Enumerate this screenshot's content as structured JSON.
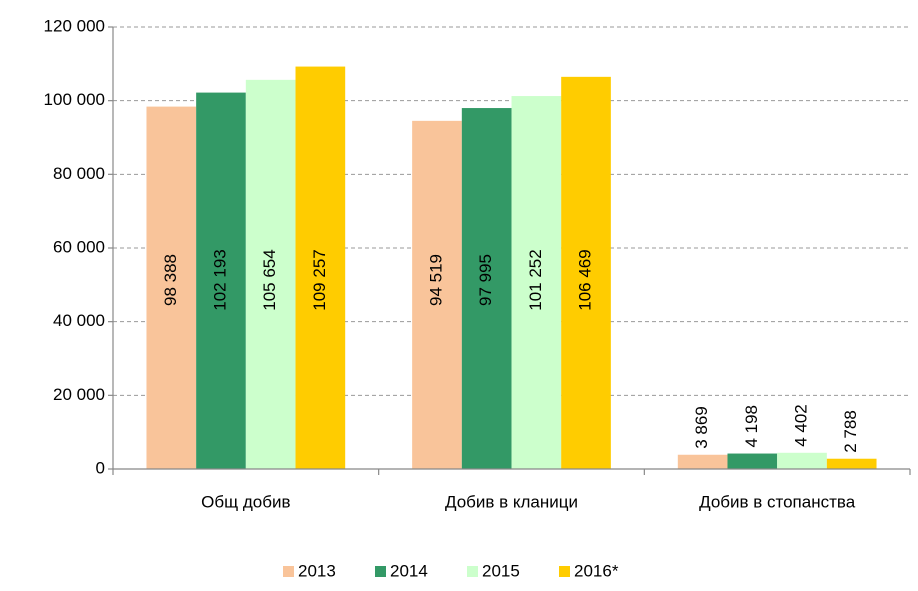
{
  "chart_data": {
    "type": "bar",
    "categories": [
      "Общ добив",
      "Добив в кланици",
      "Добив в стопанства"
    ],
    "series": [
      {
        "name": "2013",
        "color": "#f9c49a",
        "values": [
          98388,
          94519,
          3869
        ],
        "value_labels": [
          "98 388",
          "94 519",
          "3 869"
        ]
      },
      {
        "name": "2014",
        "color": "#339966",
        "values": [
          102193,
          97995,
          4198
        ],
        "value_labels": [
          "102 193",
          "97 995",
          "4 198"
        ]
      },
      {
        "name": "2015",
        "color": "#ccffcc",
        "values": [
          105654,
          101252,
          4402
        ],
        "value_labels": [
          "105 654",
          "101 252",
          "4 402"
        ]
      },
      {
        "name": "2016*",
        "color": "#ffcc00",
        "values": [
          109257,
          106469,
          2788
        ],
        "value_labels": [
          "109 257",
          "106 469",
          "2 788"
        ]
      }
    ],
    "ylim": [
      0,
      120000
    ],
    "yticks": [
      {
        "value": 0,
        "label": "0"
      },
      {
        "value": 20000,
        "label": "20 000"
      },
      {
        "value": 40000,
        "label": "40 000"
      },
      {
        "value": 60000,
        "label": "60 000"
      },
      {
        "value": 80000,
        "label": "80 000"
      },
      {
        "value": 100000,
        "label": "100 000"
      },
      {
        "value": 120000,
        "label": "120 000"
      }
    ],
    "grid": true,
    "legend": "bottom"
  }
}
